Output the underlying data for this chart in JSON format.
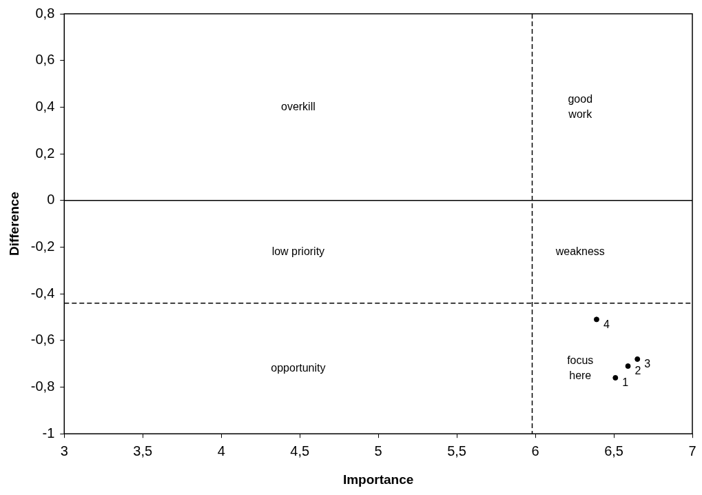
{
  "chart_data": {
    "type": "scatter",
    "xlabel": "Importance",
    "ylabel": "Difference",
    "x": [
      6.51,
      6.59,
      6.65,
      6.39
    ],
    "values": [
      -0.76,
      -0.71,
      -0.68,
      -0.51
    ],
    "color": "#000000",
    "marker": "circle",
    "grid": false,
    "legend": false,
    "xlim": [
      3,
      7
    ],
    "xticks": [
      3,
      {
        "value": 3.5,
        "label": "3,5"
      },
      4,
      {
        "value": 4.5,
        "label": "4,5"
      },
      5,
      {
        "value": 5.5,
        "label": "5,5"
      },
      6,
      {
        "value": 6.5,
        "label": "6,5"
      },
      7
    ],
    "ylim": [
      -1,
      0.8
    ],
    "yticks": [
      {
        "value": -1,
        "label": "-1"
      },
      {
        "value": -0.8,
        "label": "-0,8"
      },
      {
        "value": -0.6,
        "label": "-0,6"
      },
      {
        "value": -0.4,
        "label": "-0,4"
      },
      {
        "value": -0.2,
        "label": "-0,2"
      },
      0,
      {
        "value": 0.2,
        "label": "0,2"
      },
      {
        "value": 0.4,
        "label": "0,4"
      },
      {
        "value": 0.6,
        "label": "0,6"
      },
      {
        "value": 0.8,
        "label": "0,8"
      }
    ],
    "ref_lines": [
      {
        "axis": "y",
        "value": 0,
        "color": "#000000",
        "line_style": "solid"
      },
      {
        "axis": "y",
        "value": -0.44,
        "color": "#000000",
        "line_style": "dashed"
      },
      {
        "axis": "x",
        "value": 5.98,
        "color": "#000000",
        "line_style": "dashed"
      }
    ],
    "annotations": [
      "overkill",
      "good work",
      "low priority",
      "weakness",
      "opportunity",
      "focus here",
      {
        "text": "1",
        "x": 6.51,
        "y": -0.76
      },
      {
        "text": "2",
        "x": 6.59,
        "y": -0.71
      },
      {
        "text": "3",
        "x": 6.65,
        "y": -0.68
      },
      {
        "text": "4",
        "x": 6.39,
        "y": -0.51
      }
    ]
  }
}
